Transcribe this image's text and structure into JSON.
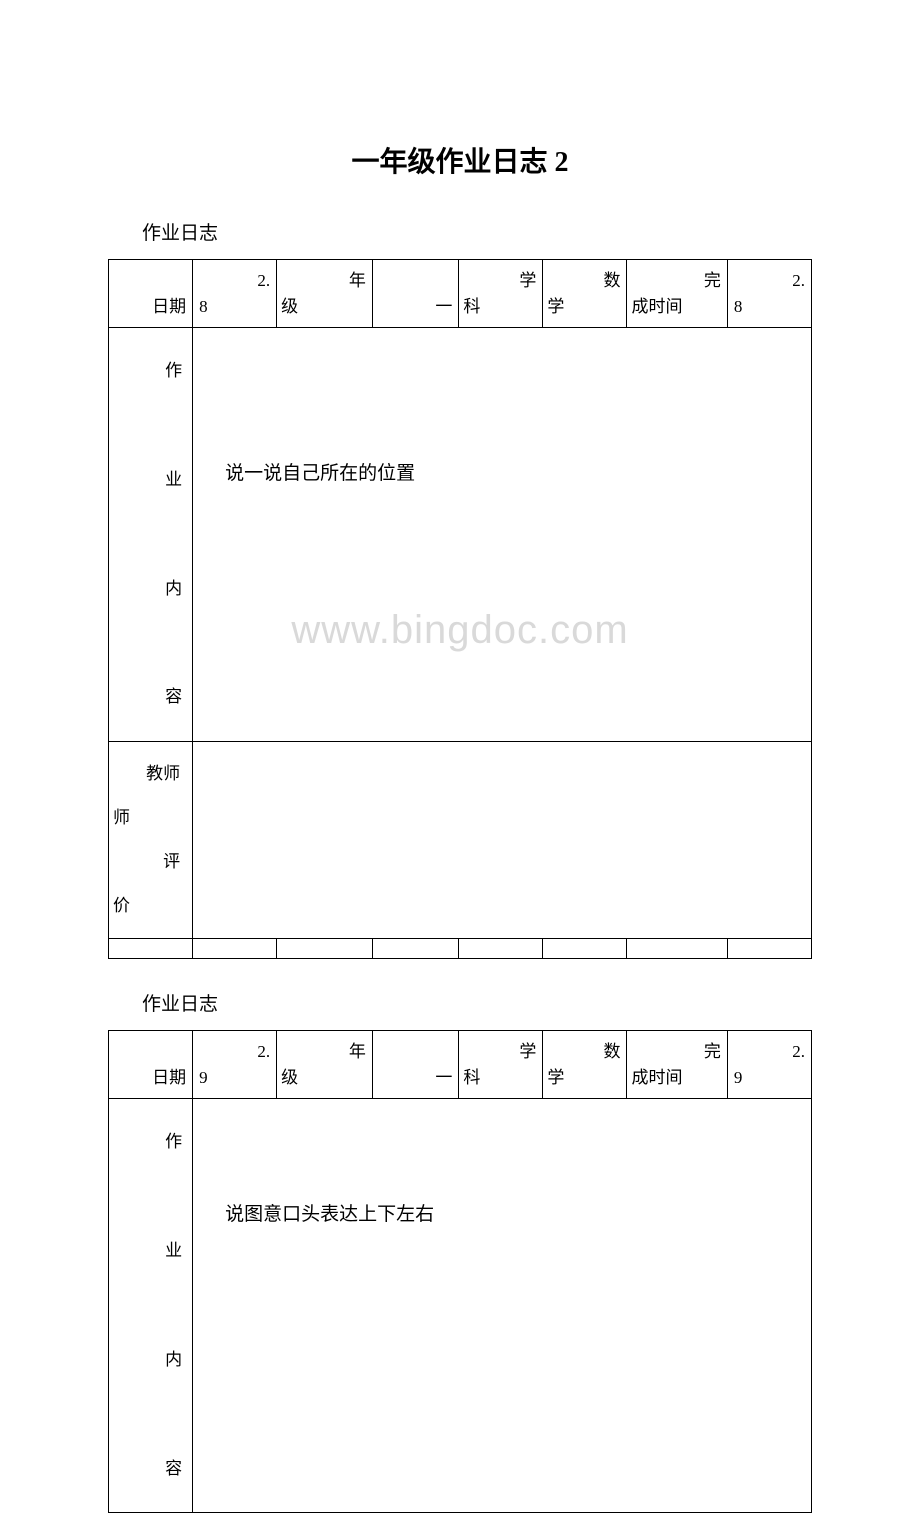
{
  "title": "一年级作业日志 2",
  "watermark": "www.bingdoc.com",
  "log1": {
    "subtitle": "作业日志",
    "date_label": "日期",
    "date_value": "2.8",
    "grade_label": "年级",
    "grade_value": "一",
    "subject_label": "学科",
    "subject_value": "数学",
    "time_label": "完成时间",
    "time_value": "2.8",
    "content_label_1": "作",
    "content_label_2": "业",
    "content_label_3": "内",
    "content_label_4": "容",
    "content_text": "说一说自己所在的位置",
    "teacher_label_1": "教师",
    "teacher_label_2": "评价"
  },
  "log2": {
    "subtitle": "作业日志",
    "date_label": "日期",
    "date_value": "2.9",
    "grade_label": "年级",
    "grade_value": "一",
    "subject_label": "学科",
    "subject_value": "数学",
    "time_label": "完成时间",
    "time_value": "2.9",
    "content_label_1": "作",
    "content_label_2": "业",
    "content_label_3": "内",
    "content_label_4": "容",
    "content_text": "说图意口头表达上下左右"
  }
}
